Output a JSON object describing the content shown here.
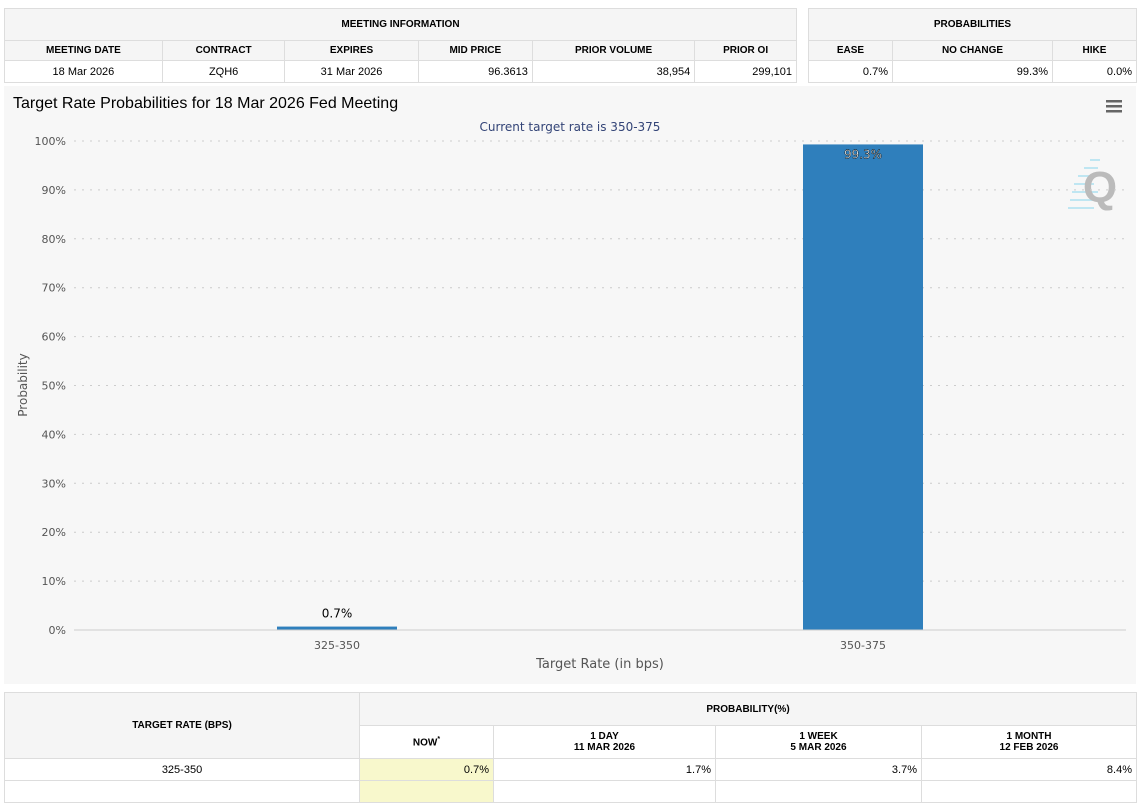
{
  "meeting_info": {
    "title": "MEETING INFORMATION",
    "headers": [
      "MEETING DATE",
      "CONTRACT",
      "EXPIRES",
      "MID PRICE",
      "PRIOR VOLUME",
      "PRIOR OI"
    ],
    "values": [
      "18 Mar 2026",
      "ZQH6",
      "31 Mar 2026",
      "96.3613",
      "38,954",
      "299,101"
    ]
  },
  "probabilities": {
    "title": "PROBABILITIES",
    "headers": [
      "EASE",
      "NO CHANGE",
      "HIKE"
    ],
    "values": [
      "0.7%",
      "99.3%",
      "0.0%"
    ]
  },
  "menu_icon": "hamburger-menu-icon",
  "chart_data": {
    "type": "bar",
    "title": "Target Rate Probabilities for 18 Mar 2026 Fed Meeting",
    "subtitle": "Current target rate is 350-375",
    "xlabel": "Target Rate (in bps)",
    "ylabel": "Probability",
    "categories": [
      "325-350",
      "350-375"
    ],
    "values": [
      0.7,
      99.3
    ],
    "data_labels": [
      "0.7%",
      "99.3%"
    ],
    "ylim": [
      0,
      100
    ],
    "yticks": [
      "0%",
      "10%",
      "20%",
      "30%",
      "40%",
      "50%",
      "60%",
      "70%",
      "80%",
      "90%",
      "100%"
    ],
    "grid": true,
    "bar_color": "#2f7fbc"
  },
  "history": {
    "col_rate": "TARGET RATE (BPS)",
    "col_prob": "PROBABILITY(%)",
    "now": "NOW",
    "now_mark": "*",
    "periods": [
      {
        "label": "1 DAY",
        "date": "11 MAR 2026"
      },
      {
        "label": "1 WEEK",
        "date": "5 MAR 2026"
      },
      {
        "label": "1 MONTH",
        "date": "12 FEB 2026"
      }
    ],
    "rows": [
      {
        "rate": "325-350",
        "now": "0.7%",
        "day": "1.7%",
        "week": "3.7%",
        "month": "8.4%"
      }
    ]
  }
}
